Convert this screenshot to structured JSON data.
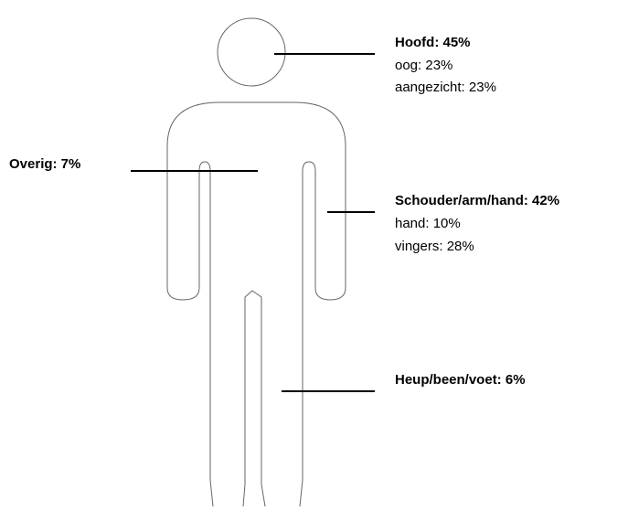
{
  "regions": [
    {
      "title": "Hoofd: 45%",
      "items": [
        "oog: 23%",
        "aangezicht: 23%"
      ]
    },
    {
      "title": "Overig: 7%",
      "items": []
    },
    {
      "title": "Schouder/arm/hand: 42%",
      "items": [
        "hand: 10%",
        "vingers: 28%"
      ]
    },
    {
      "title": "Heup/been/voet: 6%",
      "items": []
    }
  ]
}
